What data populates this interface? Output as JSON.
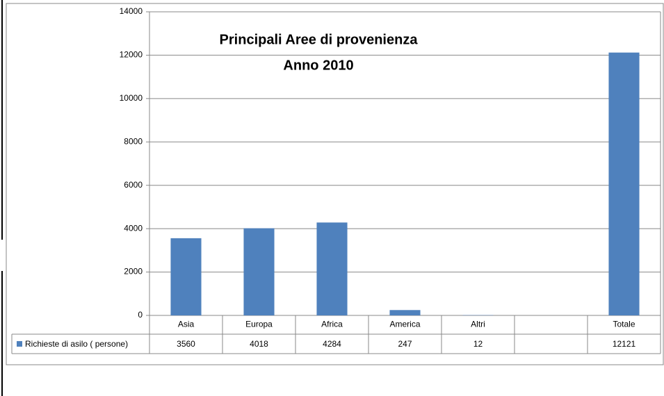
{
  "chart_data": {
    "type": "bar",
    "title": "Principali Aree di provenienza",
    "subtitle": "Anno 2010",
    "categories": [
      "Asia",
      "Europa",
      "Africa",
      "America",
      "Altri",
      null,
      "Totale"
    ],
    "series": [
      {
        "name": "Richieste di asilo ( persone)",
        "color": "#4f81bd",
        "values": [
          3560,
          4018,
          4284,
          247,
          12,
          null,
          12121
        ]
      }
    ],
    "ylim": [
      0,
      14000
    ],
    "yticks": [
      0,
      2000,
      4000,
      6000,
      8000,
      10000,
      12000,
      14000
    ],
    "grid": true
  }
}
